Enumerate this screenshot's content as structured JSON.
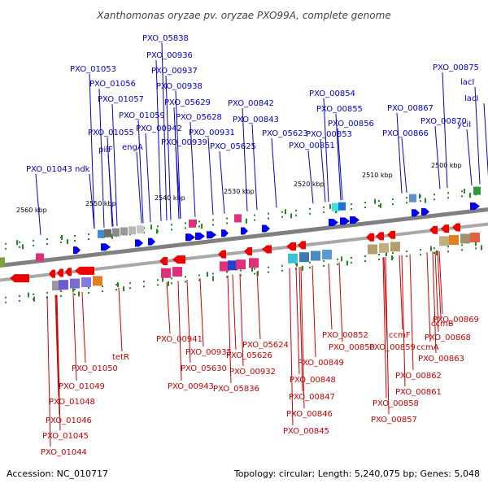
{
  "title": "Xanthomonas oryzae pv. oryzae PXO99A, complete genome",
  "footer": {
    "accession": "Accession: NC_010717",
    "summary": "Topology: circular; Length: 5,240,075 bp; Genes: 5,048"
  },
  "scale_labels": [
    "2560 kbp",
    "2550 kbp",
    "2540 kbp",
    "2530 kbp",
    "2520 kbp",
    "2510 kbp",
    "2500 kbp"
  ],
  "colors": {
    "forward_label": "#0000cc",
    "reverse_label": "#cc0000",
    "forward_gene": "#0000ee",
    "reverse_gene": "#ee0000",
    "backbone": "#808080",
    "tick": "#228822"
  },
  "top_labels": [
    "PXO_01043",
    "ndk",
    "PXO_01053",
    "PXO_01056",
    "PXO_01057",
    "PXO_01055",
    "pilF",
    "engA",
    "PXO_01059",
    "PXO_00942",
    "PXO_00939",
    "PXO_05838",
    "PXO_00936",
    "PXO_00937",
    "PXO_00938",
    "PXO_05629",
    "PXO_05628",
    "PXO_00931",
    "PXO_05625",
    "PXO_00842",
    "PXO_00843",
    "PXO_05623",
    "PXO_00854",
    "PXO_00855",
    "PXO_00856",
    "PXO_00853",
    "PXO_00851",
    "PXO_00867",
    "PXO_00870",
    "PXO_00866",
    "PXO_00875",
    "lacI",
    "lacI",
    "yciI"
  ],
  "bottom_labels": [
    "tetR",
    "PXO_01050",
    "PXO_01049",
    "PXO_01048",
    "PXO_01046",
    "PXO_01045",
    "PXO_01044",
    "PXO_00941",
    "PXO_00935",
    "PXO_05630",
    "PXO_00943",
    "PXO_05624",
    "PXO_05626",
    "PXO_00932",
    "PXO_05836",
    "PXO_00852",
    "PXO_00850",
    "PXO_00849",
    "PXO_00848",
    "PXO_00847",
    "PXO_00846",
    "PXO_00845",
    "ccmF",
    "PXO_00859",
    "ccmB",
    "ccmA",
    "PXO_00863",
    "PXO_00869",
    "PXO_00868",
    "PXO_00862",
    "PXO_00861",
    "PXO_00858",
    "PXO_00857"
  ]
}
